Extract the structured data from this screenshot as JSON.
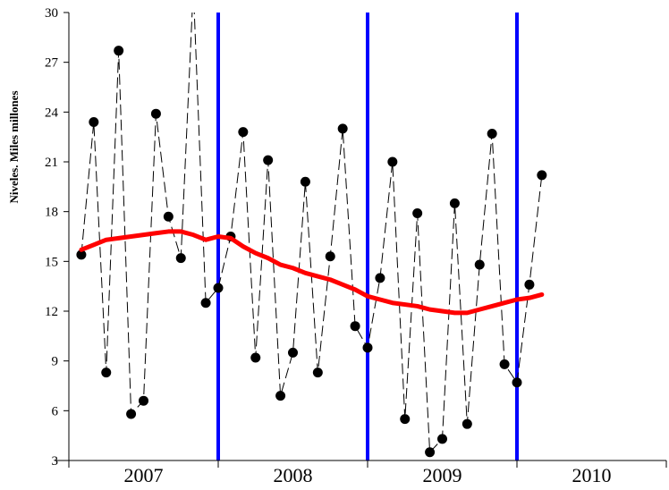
{
  "chart_data": {
    "type": "line",
    "title": "",
    "xlabel": "",
    "ylabel": "Niveles. Miles millones",
    "ylim": [
      3,
      30
    ],
    "yticks": [
      3,
      6,
      9,
      12,
      15,
      18,
      21,
      24,
      27,
      30
    ],
    "grid": false,
    "legend": "none",
    "x_periods": [
      "2007",
      "2008",
      "2009",
      "2010"
    ],
    "x_index_range": [
      0,
      48
    ],
    "year_boundaries": [
      12,
      24,
      36
    ],
    "series": [
      {
        "type": "line-markers",
        "style": "dashed",
        "color": "#000000",
        "x": [
          1,
          2,
          3,
          4,
          5,
          6,
          7,
          8,
          9,
          10,
          11,
          12,
          13,
          14,
          15,
          16,
          17,
          18,
          19,
          20,
          21,
          22,
          23,
          24,
          25,
          26,
          27,
          28,
          29,
          30,
          31,
          32,
          33,
          34,
          35,
          36,
          37,
          38
        ],
        "values": [
          15.4,
          23.4,
          8.3,
          27.7,
          5.8,
          6.6,
          23.9,
          17.7,
          15.2,
          31.5,
          12.5,
          13.4,
          16.5,
          22.8,
          9.2,
          21.1,
          6.9,
          9.5,
          19.8,
          8.3,
          15.3,
          23.0,
          11.1,
          9.8,
          14.0,
          21.0,
          5.5,
          17.9,
          3.5,
          4.3,
          18.5,
          5.2,
          14.8,
          22.7,
          8.8,
          7.7,
          13.6,
          20.2
        ]
      },
      {
        "type": "line",
        "style": "solid",
        "color": "#ff0000",
        "x": [
          1,
          2,
          3,
          4,
          5,
          6,
          7,
          8,
          9,
          10,
          11,
          12,
          13,
          14,
          15,
          16,
          17,
          18,
          19,
          20,
          21,
          22,
          23,
          24,
          25,
          26,
          27,
          28,
          29,
          30,
          31,
          32,
          33,
          34,
          35,
          36,
          37,
          38
        ],
        "values": [
          15.7,
          16.0,
          16.3,
          16.4,
          16.5,
          16.6,
          16.7,
          16.8,
          16.8,
          16.6,
          16.3,
          16.5,
          16.4,
          15.9,
          15.5,
          15.2,
          14.8,
          14.6,
          14.3,
          14.1,
          13.9,
          13.6,
          13.3,
          12.9,
          12.7,
          12.5,
          12.4,
          12.3,
          12.1,
          12.0,
          11.9,
          11.9,
          12.1,
          12.3,
          12.5,
          12.7,
          12.8,
          13.0
        ]
      }
    ],
    "vlines_color": "#0000ff"
  }
}
